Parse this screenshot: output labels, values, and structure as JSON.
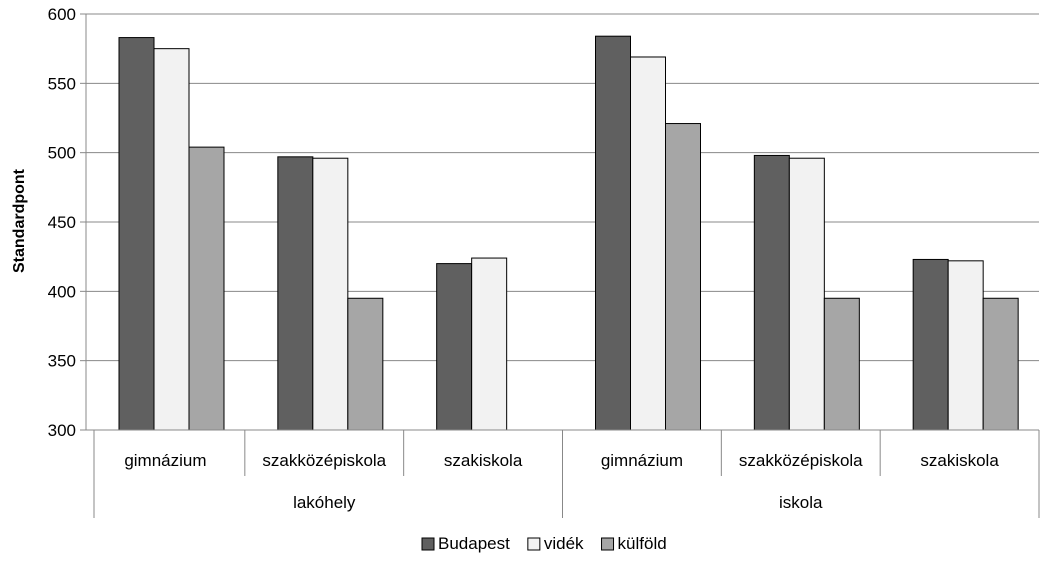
{
  "chart_data": {
    "type": "bar",
    "ylabel": "Standardpont",
    "ylim": [
      300,
      600
    ],
    "ytick_step": 50,
    "grid": true,
    "legend_position": "bottom",
    "groups": [
      {
        "label": "lakóhely",
        "categories": [
          "gimnázium",
          "szakközépiskola",
          "szakiskola"
        ]
      },
      {
        "label": "iskola",
        "categories": [
          "gimnázium",
          "szakközépiskola",
          "szakiskola"
        ]
      }
    ],
    "series": [
      {
        "name": "Budapest",
        "color": "#606060",
        "values": [
          583,
          497,
          420,
          584,
          498,
          423
        ]
      },
      {
        "name": "vidék",
        "color": "#f2f2f2",
        "values": [
          575,
          496,
          424,
          569,
          496,
          422
        ]
      },
      {
        "name": "külföld",
        "color": "#a6a6a6",
        "values": [
          504,
          395,
          300,
          521,
          395,
          395
        ]
      }
    ]
  }
}
